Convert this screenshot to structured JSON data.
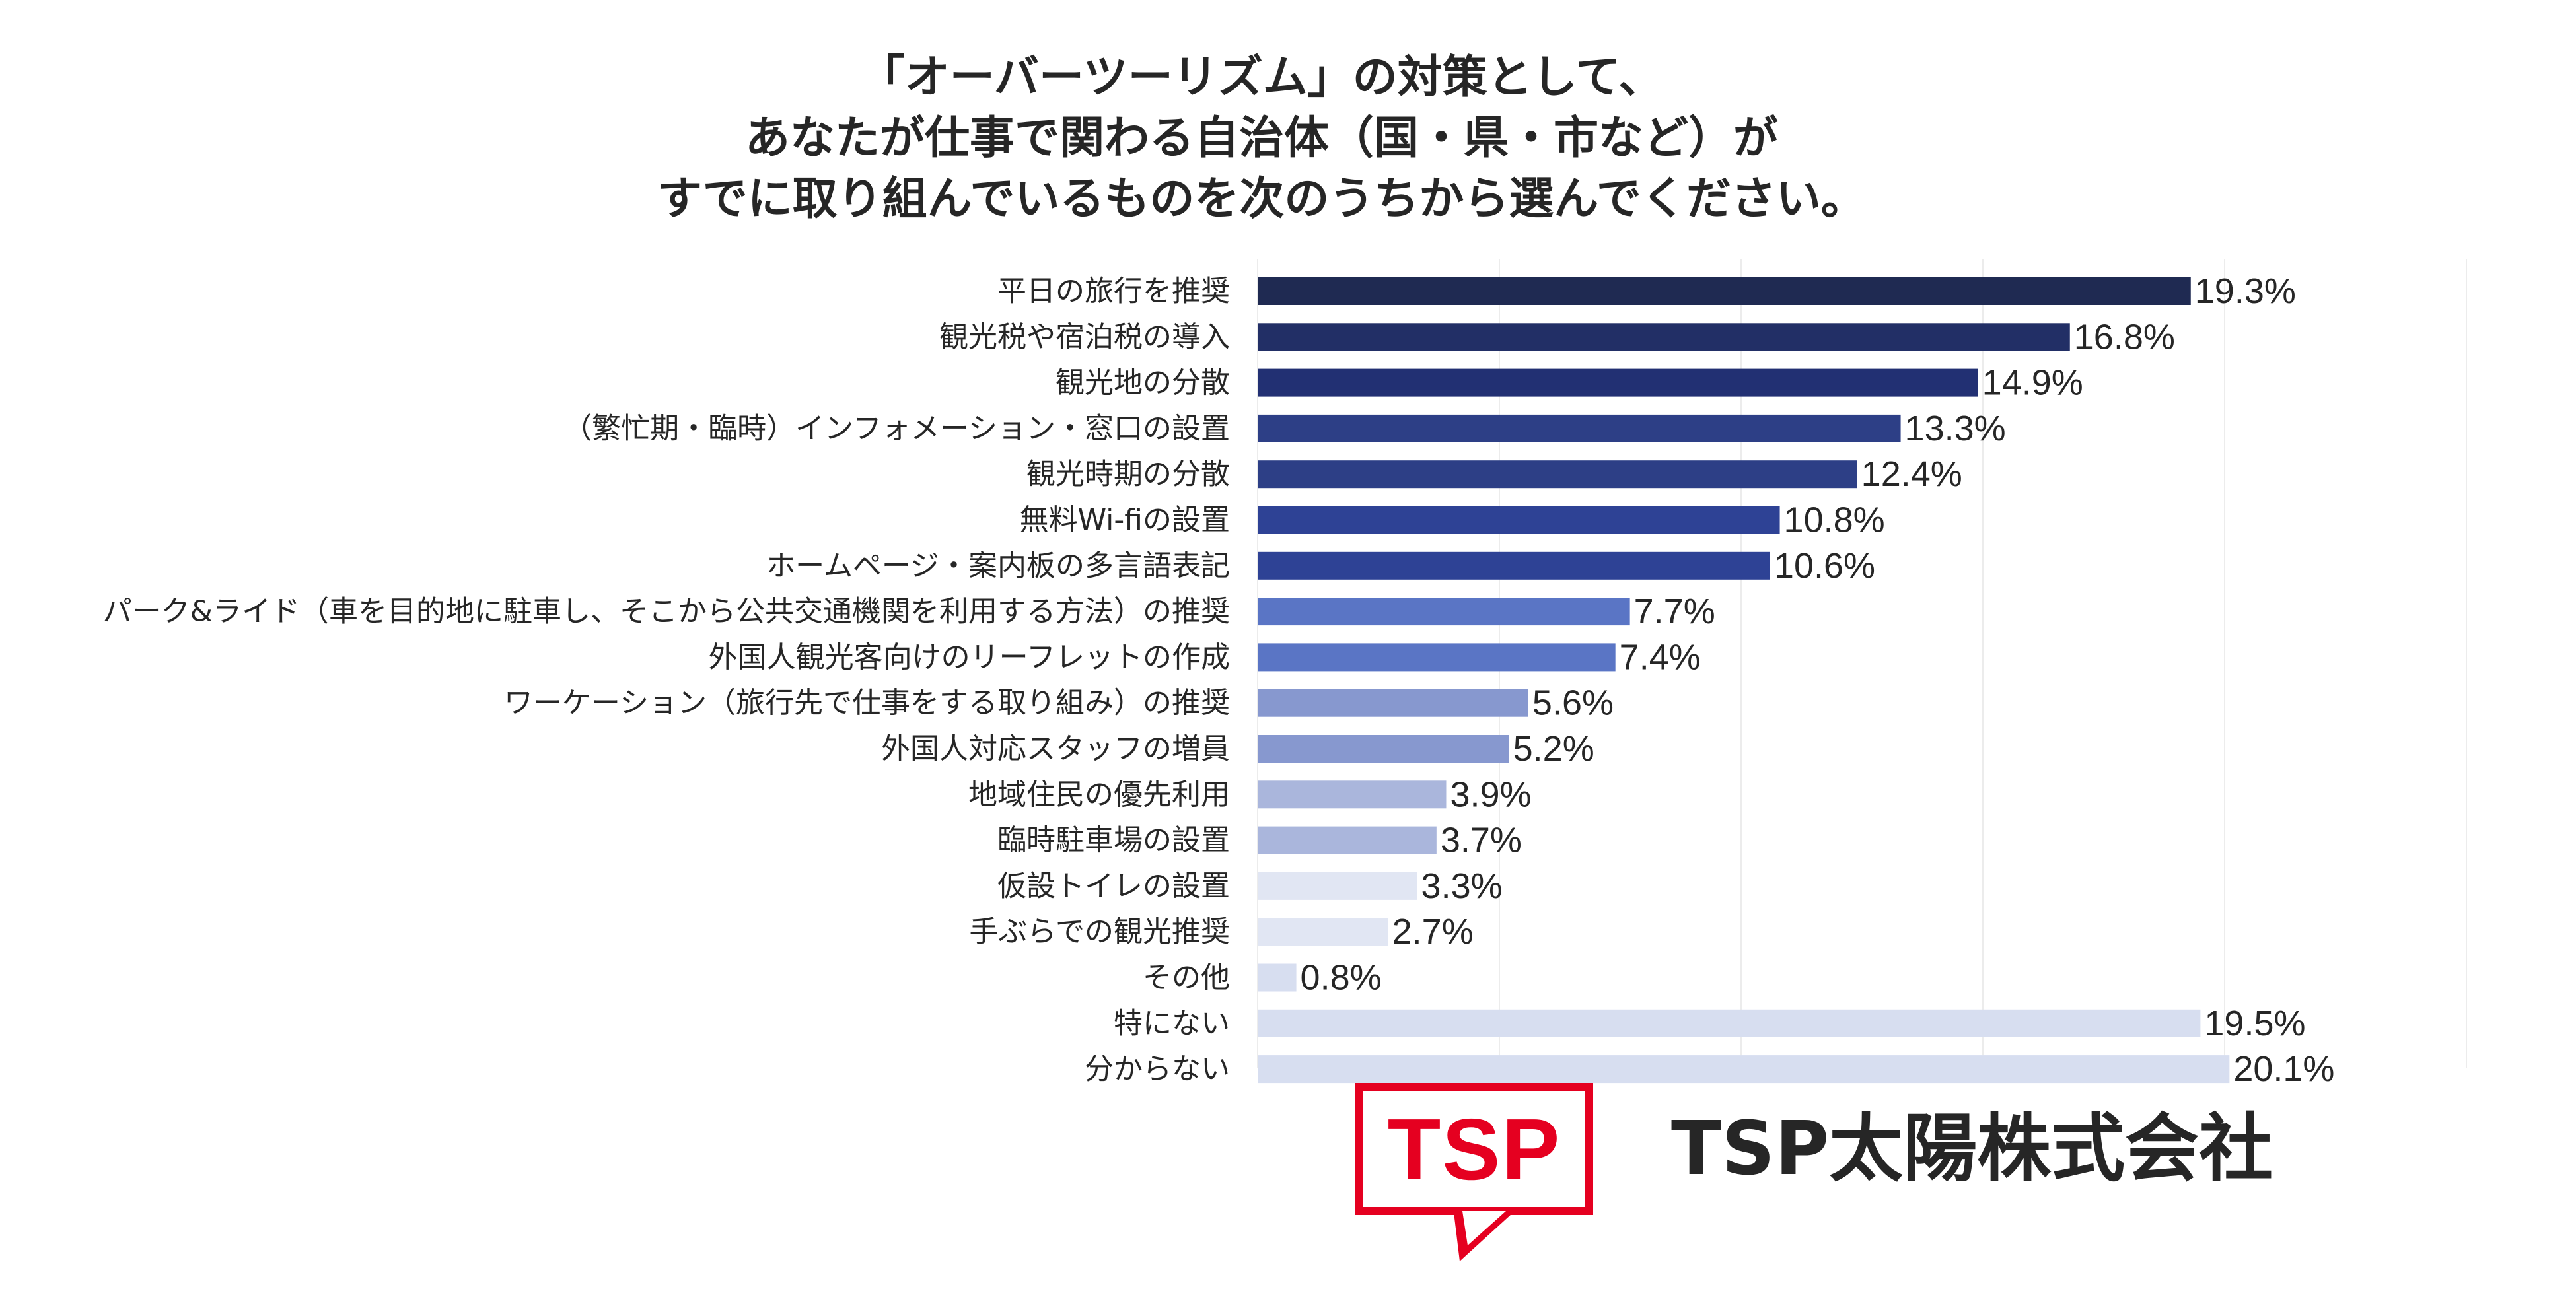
{
  "title_lines": [
    "「オーバーツーリズム」の対策として、",
    "あなたが仕事で関わる自治体（国・県・市など）が",
    "すでに取り組んでいるものを次のうちから選んでください。"
  ],
  "chart_data": {
    "type": "bar",
    "orientation": "horizontal",
    "title": "「オーバーツーリズム」の対策として、あなたが仕事で関わる自治体（国・県・市など）がすでに取り組んでいるものを次のうちから選んでください。",
    "categories": [
      "平日の旅行を推奨",
      "観光税や宿泊税の導入",
      "観光地の分散",
      "（繁忙期・臨時）インフォメーション・窓口の設置",
      "観光時期の分散",
      "無料Wi-fiの設置",
      "ホームページ・案内板の多言語表記",
      "パーク&ライド（車を目的地に駐車し、そこから公共交通機関を利用する方法）の推奨",
      "外国人観光客向けのリーフレットの作成",
      "ワーケーション（旅行先で仕事をする取り組み）の推奨",
      "外国人対応スタッフの増員",
      "地域住民の優先利用",
      "臨時駐車場の設置",
      "仮設トイレの設置",
      "手ぶらでの観光推奨",
      "その他",
      "特にない",
      "分からない"
    ],
    "values": [
      19.3,
      16.8,
      14.9,
      13.3,
      12.4,
      10.8,
      10.6,
      7.7,
      7.4,
      5.6,
      5.2,
      3.9,
      3.7,
      3.3,
      2.7,
      0.8,
      19.5,
      20.1
    ],
    "value_labels": [
      "19.3%",
      "16.8%",
      "14.9%",
      "13.3%",
      "12.4%",
      "10.8%",
      "10.6%",
      "7.7%",
      "7.4%",
      "5.6%",
      "5.2%",
      "3.9%",
      "3.7%",
      "3.3%",
      "2.7%",
      "0.8%",
      "19.5%",
      "20.1%"
    ],
    "bar_colors": [
      "#1f2a52",
      "#222f66",
      "#223073",
      "#2d3f86",
      "#2d3f86",
      "#2e4295",
      "#2e4295",
      "#5a75c5",
      "#5a75c5",
      "#8798cf",
      "#8798cf",
      "#aab6dc",
      "#aab6dc",
      "#e1e6f3",
      "#e1e6f3",
      "#d7def0",
      "#d7def0",
      "#d7def0"
    ],
    "xlim": [
      0,
      25
    ],
    "unit": "%",
    "grid": true,
    "legend": "none"
  },
  "brand": {
    "logo_text": "TSP",
    "company_name": "TSP太陽株式会社",
    "accent_color": "#e50020"
  }
}
